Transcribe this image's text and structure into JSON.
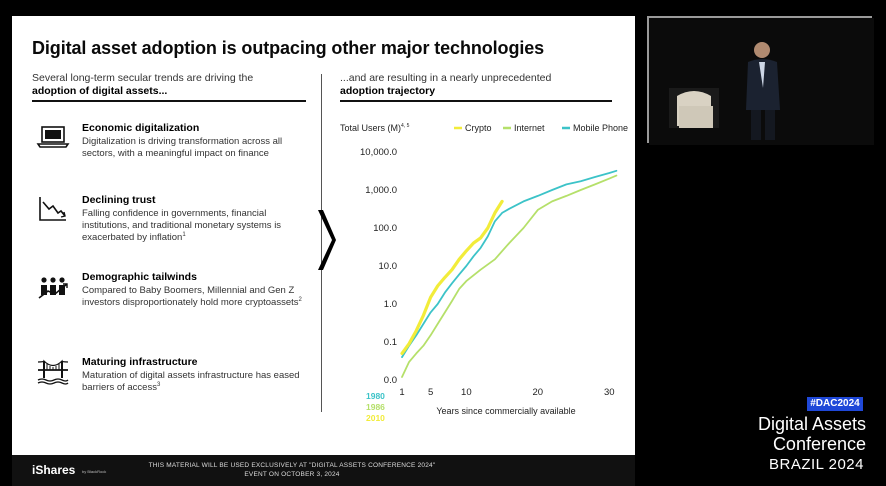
{
  "slide": {
    "title": "Digital asset adoption is outpacing other major technologies",
    "left_intro": "Several long-term secular trends are driving the",
    "left_intro_emph": "adoption of digital assets...",
    "right_intro": "...and are resulting in a nearly unprecedented",
    "right_intro_emph": "adoption trajectory",
    "trends": [
      {
        "icon": "laptop-icon",
        "title": "Economic digitalization",
        "body": "Digitalization is driving transformation across all sectors, with a meaningful impact on finance",
        "note": ""
      },
      {
        "icon": "declining-chart-icon",
        "title": "Declining trust",
        "body": "Falling confidence in governments, financial institutions, and traditional monetary systems is exacerbated by inflation",
        "note": "1"
      },
      {
        "icon": "people-growth-icon",
        "title": "Demographic tailwinds",
        "body": "Compared to Baby Boomers, Millennial and Gen Z investors disproportionately hold more cryptoassets",
        "note": "2"
      },
      {
        "icon": "bridge-icon",
        "title": "Maturing infrastructure",
        "body": "Maturation of digital assets infrastructure has eased barriers of access",
        "note": "3"
      }
    ]
  },
  "chart_data": {
    "type": "line",
    "title": "",
    "ylabel": "Total Users (M)",
    "ylabel_note": "4, 5",
    "xlabel": "Years since commercially available",
    "y_scale": "log",
    "ylim": [
      0.01,
      10000
    ],
    "xlim": [
      1,
      31.5
    ],
    "y_ticks": [
      0.01,
      0.1,
      1,
      10,
      100,
      1000,
      10000
    ],
    "y_tick_labels": [
      "0.0",
      "0.1",
      "1.0",
      "10.0",
      "100.0",
      "1,000.0",
      "10,000.0"
    ],
    "x_ticks": [
      1,
      5,
      10,
      20,
      30
    ],
    "x_tick_labels": [
      "1",
      "5",
      "10",
      "20",
      "30"
    ],
    "legend_position": "top",
    "start_years": [
      {
        "label": "1980",
        "color": "#3cc3c8"
      },
      {
        "label": "1986",
        "color": "#b5e06a"
      },
      {
        "label": "2010",
        "color": "#f2ec3a"
      }
    ],
    "series": [
      {
        "name": "Crypto",
        "color": "#f2ec3a",
        "x": [
          1,
          2,
          3,
          4,
          5,
          6,
          7,
          8,
          9,
          10,
          11,
          12,
          13,
          14,
          15
        ],
        "y": [
          0.05,
          0.09,
          0.2,
          0.5,
          1.5,
          3,
          5,
          8,
          15,
          25,
          40,
          55,
          100,
          250,
          500
        ]
      },
      {
        "name": "Internet",
        "color": "#b5e06a",
        "x": [
          1,
          2,
          3,
          4,
          5,
          6,
          7,
          8,
          9,
          10,
          12,
          14,
          16,
          18,
          20,
          22,
          24,
          26,
          28,
          30,
          31
        ],
        "y": [
          0.012,
          0.03,
          0.05,
          0.08,
          0.15,
          0.3,
          0.6,
          1.2,
          2.5,
          4,
          8,
          15,
          40,
          100,
          300,
          500,
          700,
          1000,
          1400,
          2000,
          2400
        ]
      },
      {
        "name": "Mobile Phone",
        "color": "#3cc3c8",
        "x": [
          1,
          2,
          3,
          4,
          5,
          6,
          7,
          8,
          9,
          10,
          11,
          12,
          13,
          14,
          15,
          16,
          18,
          20,
          22,
          24,
          26,
          28,
          30,
          31
        ],
        "y": [
          0.04,
          0.08,
          0.15,
          0.3,
          0.6,
          1.0,
          2,
          3.5,
          6,
          10,
          18,
          30,
          60,
          150,
          250,
          320,
          500,
          700,
          1000,
          1400,
          1700,
          2200,
          2800,
          3200
        ]
      }
    ]
  },
  "footer": {
    "brand": "iShares",
    "brand_sub": "by BlackRock",
    "disclaimer": "THIS MATERIAL WILL BE USED EXCLUSIVELY AT \"DIGITAL ASSETS CONFERENCE 2024\" EVENT ON OCTOBER 3, 2024"
  },
  "conference": {
    "tag": "#DAC2024",
    "name_line1": "Digital Assets",
    "name_line2": "Conference",
    "location": "BRAZIL 2024"
  }
}
